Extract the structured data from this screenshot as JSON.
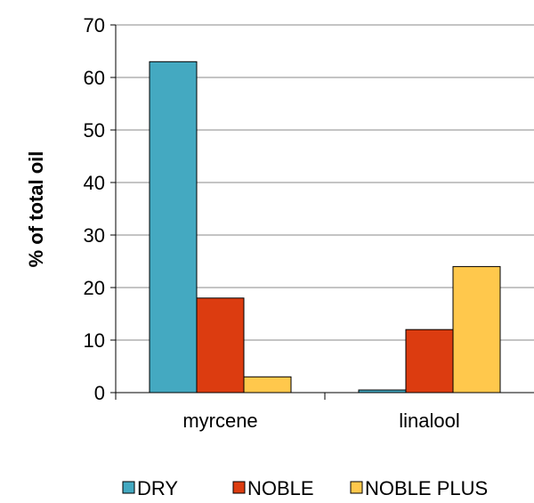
{
  "chart_data": {
    "type": "bar",
    "title": "",
    "xlabel": "",
    "ylabel": "% of total oil",
    "categories": [
      "myrcene",
      "linalool"
    ],
    "series": [
      {
        "name": "DRY",
        "values": [
          63,
          0.5
        ],
        "color": "#44a9c1"
      },
      {
        "name": "NOBLE",
        "values": [
          18,
          12
        ],
        "color": "#dc3c10"
      },
      {
        "name": "NOBLE PLUS",
        "values": [
          3,
          24
        ],
        "color": "#ffc84c"
      }
    ],
    "ylim": [
      0,
      70
    ],
    "yticks": [
      0,
      10,
      20,
      30,
      40,
      50,
      60,
      70
    ],
    "grid": true,
    "legend_position": "bottom"
  }
}
